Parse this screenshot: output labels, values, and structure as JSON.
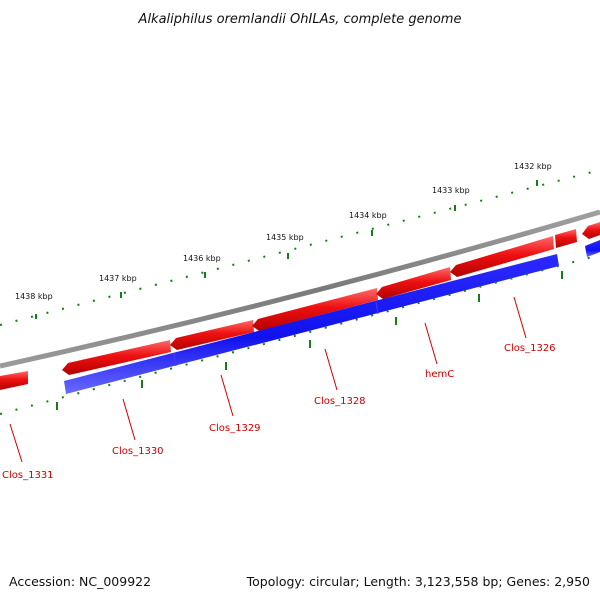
{
  "title": "Alkaliphilus oremlandii OhILAs, complete genome",
  "footer": {
    "accession": "Accession: NC_009922",
    "summary": "Topology: circular; Length: 3,123,558 bp; Genes: 2,950"
  },
  "colors": {
    "backbone": "#808080",
    "forward_gene": "#ee1111",
    "reverse_gene": "#1111ee",
    "tick": "#1a7a1a",
    "label": "#cc0000"
  },
  "scale_labels": [
    {
      "text": "1438 kbp",
      "kbp": 1438
    },
    {
      "text": "1437 kbp",
      "kbp": 1437
    },
    {
      "text": "1436 kbp",
      "kbp": 1436
    },
    {
      "text": "1435 kbp",
      "kbp": 1435
    },
    {
      "text": "1434 kbp",
      "kbp": 1434
    },
    {
      "text": "1433 kbp",
      "kbp": 1433
    },
    {
      "text": "1432 kbp",
      "kbp": 1432
    }
  ],
  "gene_labels": [
    {
      "text": "Clos_1331"
    },
    {
      "text": "Clos_1330"
    },
    {
      "text": "Clos_1329"
    },
    {
      "text": "Clos_1328"
    },
    {
      "text": "hemC"
    },
    {
      "text": "Clos_1326"
    }
  ]
}
